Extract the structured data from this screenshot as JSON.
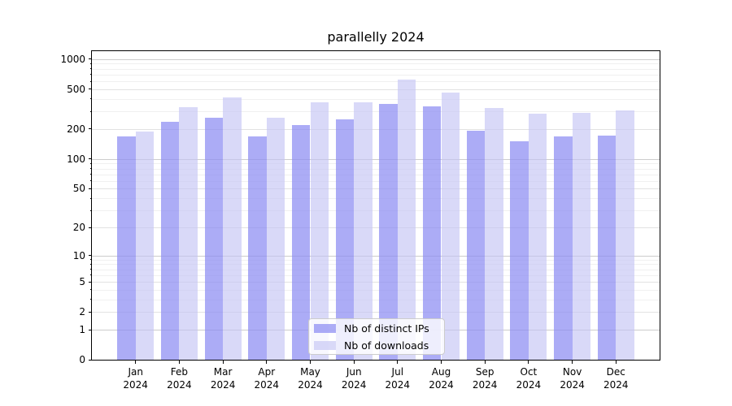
{
  "chart_data": {
    "type": "bar",
    "title": "parallelly 2024",
    "x_categories": [
      "Jan 2024",
      "Feb 2024",
      "Mar 2024",
      "Apr 2024",
      "May 2024",
      "Jun 2024",
      "Jul 2024",
      "Aug 2024",
      "Sep 2024",
      "Oct 2024",
      "Nov 2024",
      "Dec 2024"
    ],
    "series": [
      {
        "name": "Nb of distinct IPs",
        "color": "#8c8cf2",
        "alpha": 0.72,
        "values": [
          168,
          235,
          262,
          168,
          219,
          252,
          360,
          338,
          193,
          150,
          168,
          171
        ]
      },
      {
        "name": "Nb of downloads",
        "color": "#c4c4f4",
        "alpha": 0.65,
        "values": [
          188,
          332,
          412,
          261,
          370,
          371,
          630,
          464,
          328,
          286,
          288,
          308
        ]
      }
    ],
    "yscale": "log1p",
    "y_ticks": [
      0,
      1,
      2,
      5,
      10,
      20,
      50,
      100,
      200,
      500,
      1000
    ],
    "ylim": [
      0,
      1200
    ],
    "xlabel": "",
    "ylabel": "",
    "grid": "horizontal",
    "legend_position": "lower-center-inside",
    "axis_color": "#000000",
    "grid_color_decade": "#cccccc",
    "grid_color_labeled": "#e2e2e2",
    "grid_color_minor": "#f0f0f0"
  }
}
